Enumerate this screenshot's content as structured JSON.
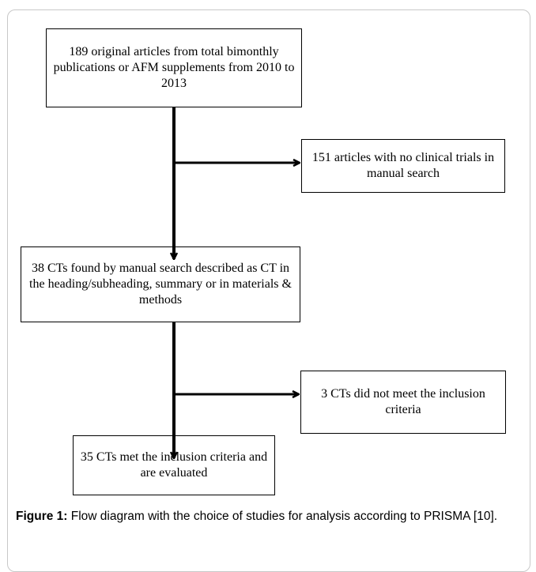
{
  "boxes": {
    "b1": "189 original articles from total bimonthly publications or AFM supplements from 2010 to 2013",
    "b2": "151 articles with no clinical trials in manual search",
    "b3": "38 CTs found by manual search described as CT in the heading/subheading, summary or in materials & methods",
    "b4": "3 CTs did not meet the inclusion criteria",
    "b5": "35 CTs met the inclusion criteria and are evaluated"
  },
  "caption": {
    "label": "Figure 1:",
    "text": " Flow diagram with the choice of studies for analysis according to PRISMA [10]."
  }
}
